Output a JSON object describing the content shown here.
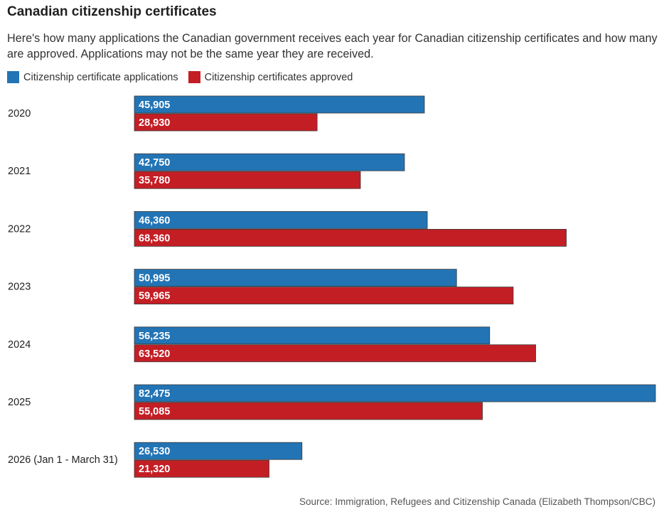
{
  "title": "Canadian citizenship certificates",
  "subtitle": "Here's how many applications the Canadian government receives each year for Canadian citizenship certificates and how many are approved. Applications may not be the same year they are received.",
  "source": "Source: Immigration, Refugees and Citizenship Canada (Elizabeth Thompson/CBC)",
  "colors": {
    "applications": "#2274b5",
    "approved": "#c41e25"
  },
  "chart_data": {
    "type": "bar",
    "orientation": "horizontal",
    "categories": [
      "2020",
      "2021",
      "2022",
      "2023",
      "2024",
      "2025",
      "2026 (Jan 1 - March 31)"
    ],
    "series": [
      {
        "name": "Citizenship certificate applications",
        "values": [
          45905,
          42750,
          46360,
          50995,
          56235,
          82475,
          26530
        ],
        "labels": [
          "45,905",
          "42,750",
          "46,360",
          "50,995",
          "56,235",
          "82,475",
          "26,530"
        ]
      },
      {
        "name": "Citizenship certificates approved",
        "values": [
          28930,
          35780,
          68360,
          59965,
          63520,
          55085,
          21320
        ],
        "labels": [
          "28,930",
          "35,780",
          "68,360",
          "59,965",
          "63,520",
          "55,085",
          "21,320"
        ]
      }
    ],
    "xlim": [
      0,
      82475
    ],
    "legend_position": "top-left",
    "grid": false
  }
}
